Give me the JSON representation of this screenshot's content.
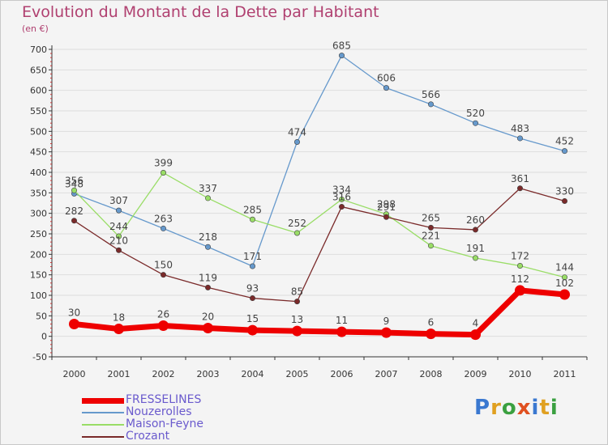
{
  "title": "Evolution du Montant de la Dette par Habitant",
  "unit": "(en €)",
  "logo": "Proxiti",
  "logo_colors": [
    "#3a78d0",
    "#e0a020",
    "#3aa040",
    "#e05020",
    "#3a78d0",
    "#e0a020",
    "#3aa040"
  ],
  "colors": {
    "background": "#f4f4f4",
    "grid": "#dddddd",
    "axis": "#333333",
    "title": "#b04070",
    "legend_text": "#6a5acd"
  },
  "chart_data": {
    "type": "line",
    "title": "Evolution du Montant de la Dette par Habitant",
    "ylabel": "(en €)",
    "xlabel": "",
    "x": [
      "2000",
      "2001",
      "2002",
      "2003",
      "2004",
      "2005",
      "2006",
      "2007",
      "2008",
      "2009",
      "2010",
      "2011"
    ],
    "ylim": [
      -50,
      700
    ],
    "yticks": [
      -50,
      0,
      50,
      100,
      150,
      200,
      250,
      300,
      350,
      400,
      450,
      500,
      550,
      600,
      650,
      700
    ],
    "ytick_labels": [
      "-50",
      "0",
      "50",
      "100",
      "150",
      "200",
      "250",
      "300",
      "350",
      "400",
      "450",
      "500",
      "550",
      "600",
      "650",
      "700"
    ],
    "grid": true,
    "legend_position": "bottom-left",
    "series": [
      {
        "name": "FRESSELINES",
        "color": "#ee0000",
        "values": [
          30,
          18,
          26,
          20,
          15,
          13,
          11,
          9,
          6,
          4,
          112,
          102
        ],
        "labels": [
          "30",
          "18",
          "26",
          "20",
          "15",
          "13",
          "11",
          "9",
          "6",
          "4",
          "112",
          "102"
        ]
      },
      {
        "name": "Nouzerolles",
        "color": "#6699cc",
        "values": [
          348,
          307,
          263,
          218,
          171,
          474,
          685,
          606,
          566,
          520,
          483,
          452
        ],
        "labels": [
          "348",
          "307",
          "263",
          "218",
          "171",
          "474",
          "685",
          "606",
          "566",
          "520",
          "483",
          "452"
        ]
      },
      {
        "name": "Maison-Feyne",
        "color": "#99dd66",
        "values": [
          356,
          244,
          399,
          337,
          285,
          252,
          334,
          298,
          221,
          191,
          172,
          144
        ],
        "labels": [
          "356",
          "244",
          "399",
          "337",
          "285",
          "252",
          "334",
          "298",
          "221",
          "191",
          "172",
          "144"
        ]
      },
      {
        "name": "Crozant",
        "color": "#7a2a2a",
        "values": [
          282,
          210,
          150,
          119,
          93,
          85,
          316,
          291,
          265,
          260,
          361,
          330
        ],
        "labels": [
          "282",
          "210",
          "150",
          "119",
          "93",
          "85",
          "316",
          "291",
          "265",
          "260",
          "361",
          "330"
        ]
      }
    ]
  }
}
